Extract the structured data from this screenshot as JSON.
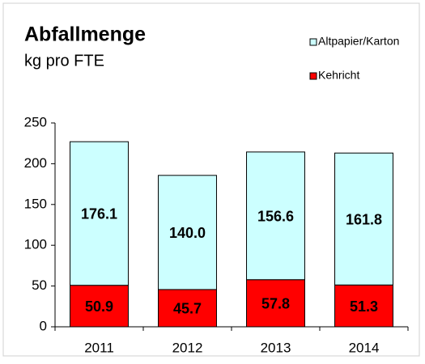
{
  "chart_data": {
    "type": "stacked_bar",
    "title": "Abfallmenge",
    "subtitle": "kg pro FTE",
    "categories": [
      "2011",
      "2012",
      "2013",
      "2014"
    ],
    "series": [
      {
        "name": "Kehricht",
        "color": "#ff0000",
        "values": [
          50.9,
          45.7,
          57.8,
          51.3
        ]
      },
      {
        "name": "Altpapier/Karton",
        "color": "#ccffff",
        "values": [
          176.1,
          140.0,
          156.6,
          161.8
        ],
        "value_labels": [
          "176.1",
          "140.0",
          "156.6",
          "161.8"
        ]
      }
    ],
    "ylim": [
      0,
      250
    ],
    "yticks": [
      0,
      50,
      100,
      150,
      200,
      250
    ],
    "legend": "top-right"
  }
}
